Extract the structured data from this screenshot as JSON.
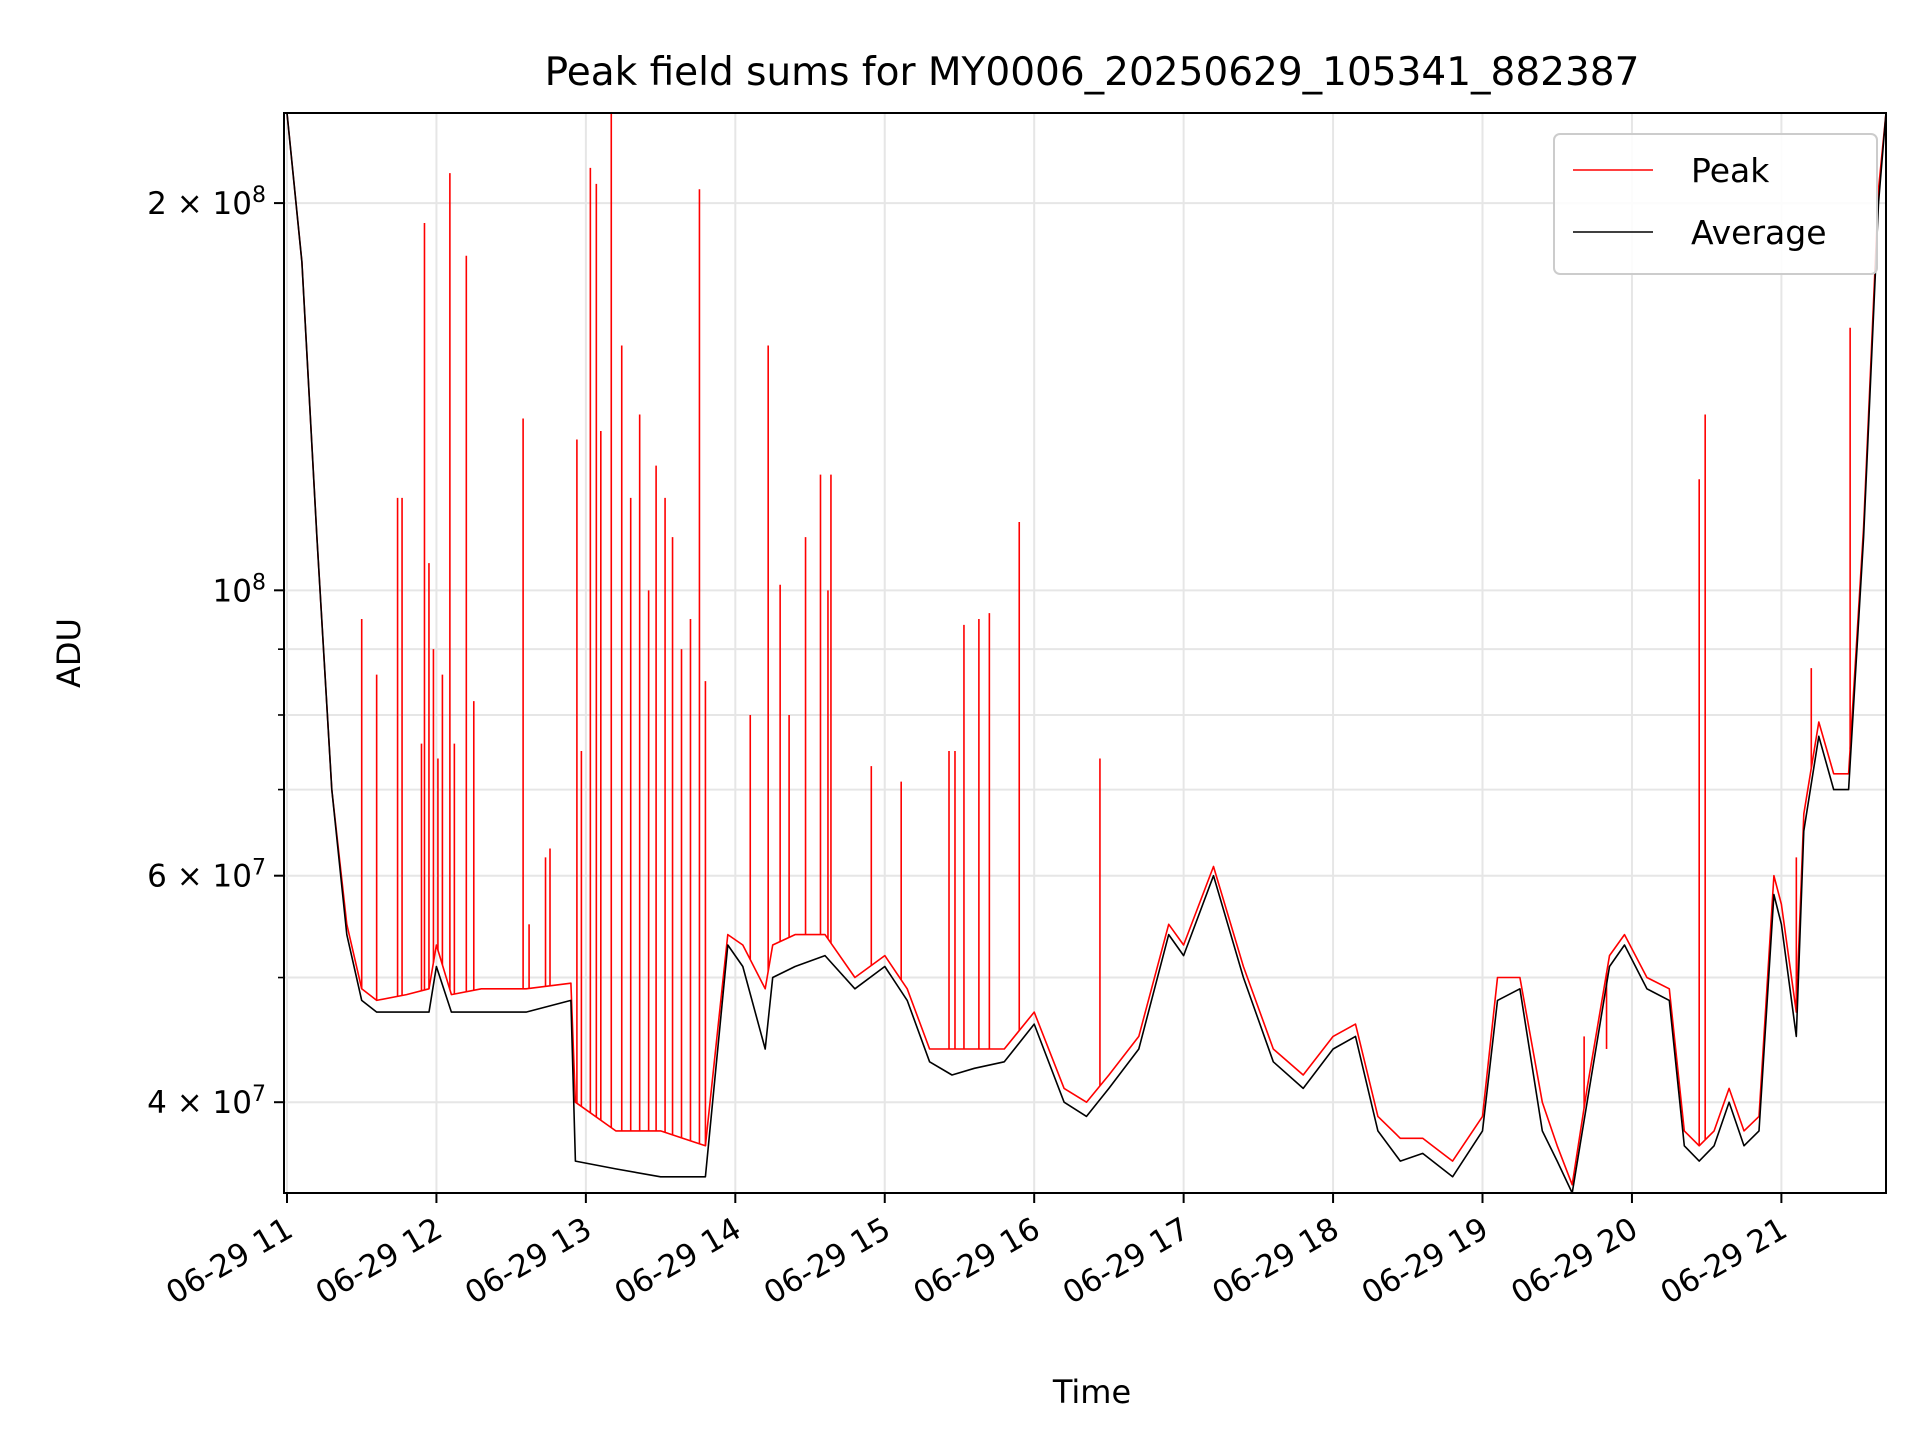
{
  "chart_data": {
    "type": "line",
    "title": "Peak field sums for MY0006_20250629_105341_882387",
    "xlabel": "Time",
    "ylabel": "ADU",
    "yscale": "log",
    "xlim": [
      10.98,
      21.7
    ],
    "ylim": [
      34000000,
      235000000
    ],
    "grid": true,
    "legend_position": "top-right",
    "x_ticks": [
      {
        "x": 11,
        "label": "06-29 11"
      },
      {
        "x": 12,
        "label": "06-29 12"
      },
      {
        "x": 13,
        "label": "06-29 13"
      },
      {
        "x": 14,
        "label": "06-29 14"
      },
      {
        "x": 15,
        "label": "06-29 15"
      },
      {
        "x": 16,
        "label": "06-29 16"
      },
      {
        "x": 17,
        "label": "06-29 17"
      },
      {
        "x": 18,
        "label": "06-29 18"
      },
      {
        "x": 19,
        "label": "06-29 19"
      },
      {
        "x": 20,
        "label": "06-29 20"
      },
      {
        "x": 21,
        "label": "06-29 21"
      }
    ],
    "y_ticks": [
      {
        "value": 40000000,
        "mantissa": "4",
        "exp": "7"
      },
      {
        "value": 60000000,
        "mantissa": "6",
        "exp": "7"
      },
      {
        "value": 100000000,
        "mantissa": "",
        "exp": "8"
      },
      {
        "value": 200000000,
        "mantissa": "2",
        "exp": "8"
      }
    ],
    "y_minor_ticks": [
      50000000,
      70000000,
      80000000,
      90000000
    ],
    "series": [
      {
        "name": "Average",
        "color": "#000000",
        "x": [
          11.0,
          11.1,
          11.2,
          11.3,
          11.4,
          11.5,
          11.6,
          11.8,
          11.95,
          12.0,
          12.1,
          12.3,
          12.6,
          12.9,
          12.93,
          13.2,
          13.5,
          13.8,
          13.95,
          14.05,
          14.2,
          14.25,
          14.4,
          14.6,
          14.8,
          15.0,
          15.15,
          15.3,
          15.45,
          15.6,
          15.8,
          16.0,
          16.2,
          16.35,
          16.5,
          16.7,
          16.9,
          17.0,
          17.2,
          17.4,
          17.6,
          17.8,
          18.0,
          18.15,
          18.3,
          18.45,
          18.6,
          18.8,
          19.0,
          19.1,
          19.25,
          19.4,
          19.5,
          19.6,
          19.7,
          19.85,
          19.95,
          20.1,
          20.25,
          20.35,
          20.45,
          20.55,
          20.65,
          20.75,
          20.85,
          20.95,
          21.0,
          21.1,
          21.15,
          21.25,
          21.35,
          21.45,
          21.55,
          21.65,
          21.7
        ],
        "values": [
          235000000,
          180000000,
          110000000,
          70000000,
          54000000,
          48000000,
          47000000,
          47000000,
          47000000,
          51000000,
          47000000,
          47000000,
          47000000,
          48000000,
          36000000,
          35500000,
          35000000,
          35000000,
          53000000,
          51000000,
          44000000,
          50000000,
          51000000,
          52000000,
          49000000,
          51000000,
          48000000,
          43000000,
          42000000,
          42500000,
          43000000,
          46000000,
          40000000,
          39000000,
          41000000,
          44000000,
          54000000,
          52000000,
          60000000,
          50000000,
          43000000,
          41000000,
          44000000,
          45000000,
          38000000,
          36000000,
          36500000,
          35000000,
          38000000,
          48000000,
          49000000,
          38000000,
          36000000,
          34000000,
          40000000,
          51000000,
          53000000,
          49000000,
          48000000,
          37000000,
          36000000,
          37000000,
          40000000,
          37000000,
          38000000,
          58000000,
          55000000,
          45000000,
          65000000,
          77000000,
          70000000,
          70000000,
          110000000,
          200000000,
          235000000
        ]
      },
      {
        "name": "Peak",
        "color": "#ff0000",
        "x": [
          11.0,
          11.1,
          11.2,
          11.3,
          11.4,
          11.5,
          11.6,
          11.8,
          11.95,
          12.0,
          12.1,
          12.3,
          12.6,
          12.9,
          12.93,
          13.2,
          13.5,
          13.8,
          13.95,
          14.05,
          14.2,
          14.25,
          14.4,
          14.6,
          14.8,
          15.0,
          15.15,
          15.3,
          15.45,
          15.6,
          15.8,
          16.0,
          16.2,
          16.35,
          16.5,
          16.7,
          16.9,
          17.0,
          17.2,
          17.4,
          17.6,
          17.8,
          18.0,
          18.15,
          18.3,
          18.45,
          18.6,
          18.8,
          19.0,
          19.1,
          19.25,
          19.4,
          19.5,
          19.6,
          19.7,
          19.85,
          19.95,
          20.1,
          20.25,
          20.35,
          20.45,
          20.55,
          20.65,
          20.75,
          20.85,
          20.95,
          21.0,
          21.1,
          21.15,
          21.25,
          21.35,
          21.45,
          21.55,
          21.65,
          21.7
        ],
        "values": [
          235000000,
          180000000,
          110000000,
          70000000,
          55000000,
          49000000,
          48000000,
          48500000,
          49000000,
          53000000,
          48500000,
          49000000,
          49000000,
          49500000,
          40000000,
          38000000,
          38000000,
          37000000,
          54000000,
          53000000,
          49000000,
          53000000,
          54000000,
          54000000,
          50000000,
          52000000,
          49000000,
          44000000,
          44000000,
          44000000,
          44000000,
          47000000,
          41000000,
          40000000,
          42000000,
          45000000,
          55000000,
          53000000,
          61000000,
          51000000,
          44000000,
          42000000,
          45000000,
          46000000,
          39000000,
          37500000,
          37500000,
          36000000,
          39000000,
          50000000,
          50000000,
          40000000,
          37000000,
          34500000,
          41000000,
          52000000,
          54000000,
          50000000,
          49000000,
          38000000,
          37000000,
          38000000,
          41000000,
          38000000,
          39000000,
          60000000,
          57000000,
          47000000,
          67000000,
          79000000,
          72000000,
          72000000,
          112000000,
          205000000,
          235000000
        ],
        "spikes": [
          {
            "x": 11.5,
            "v": 95000000
          },
          {
            "x": 11.6,
            "v": 86000000
          },
          {
            "x": 11.74,
            "v": 118000000
          },
          {
            "x": 11.77,
            "v": 118000000
          },
          {
            "x": 11.9,
            "v": 76000000
          },
          {
            "x": 11.92,
            "v": 193000000
          },
          {
            "x": 11.95,
            "v": 105000000
          },
          {
            "x": 11.98,
            "v": 90000000
          },
          {
            "x": 12.01,
            "v": 74000000
          },
          {
            "x": 12.04,
            "v": 86000000
          },
          {
            "x": 12.09,
            "v": 211000000
          },
          {
            "x": 12.12,
            "v": 76000000
          },
          {
            "x": 12.2,
            "v": 182000000
          },
          {
            "x": 12.25,
            "v": 82000000
          },
          {
            "x": 12.58,
            "v": 136000000
          },
          {
            "x": 12.62,
            "v": 55000000
          },
          {
            "x": 12.73,
            "v": 62000000
          },
          {
            "x": 12.76,
            "v": 63000000
          },
          {
            "x": 12.94,
            "v": 131000000
          },
          {
            "x": 12.97,
            "v": 75000000
          },
          {
            "x": 13.03,
            "v": 213000000
          },
          {
            "x": 13.07,
            "v": 207000000
          },
          {
            "x": 13.1,
            "v": 133000000
          },
          {
            "x": 13.17,
            "v": 235000000
          },
          {
            "x": 13.24,
            "v": 155000000
          },
          {
            "x": 13.3,
            "v": 118000000
          },
          {
            "x": 13.36,
            "v": 137000000
          },
          {
            "x": 13.42,
            "v": 100000000
          },
          {
            "x": 13.47,
            "v": 125000000
          },
          {
            "x": 13.53,
            "v": 118000000
          },
          {
            "x": 13.58,
            "v": 110000000
          },
          {
            "x": 13.64,
            "v": 90000000
          },
          {
            "x": 13.7,
            "v": 95000000
          },
          {
            "x": 13.76,
            "v": 205000000
          },
          {
            "x": 13.8,
            "v": 85000000
          },
          {
            "x": 14.1,
            "v": 80000000
          },
          {
            "x": 14.22,
            "v": 155000000
          },
          {
            "x": 14.3,
            "v": 101000000
          },
          {
            "x": 14.36,
            "v": 80000000
          },
          {
            "x": 14.47,
            "v": 110000000
          },
          {
            "x": 14.57,
            "v": 123000000
          },
          {
            "x": 14.62,
            "v": 100000000
          },
          {
            "x": 14.64,
            "v": 123000000
          },
          {
            "x": 14.91,
            "v": 73000000
          },
          {
            "x": 15.11,
            "v": 71000000
          },
          {
            "x": 15.43,
            "v": 75000000
          },
          {
            "x": 15.47,
            "v": 75000000
          },
          {
            "x": 15.53,
            "v": 94000000
          },
          {
            "x": 15.63,
            "v": 95000000
          },
          {
            "x": 15.7,
            "v": 96000000
          },
          {
            "x": 15.9,
            "v": 113000000
          },
          {
            "x": 16.44,
            "v": 74000000
          },
          {
            "x": 19.68,
            "v": 45000000
          },
          {
            "x": 19.83,
            "v": 44000000
          },
          {
            "x": 20.45,
            "v": 122000000
          },
          {
            "x": 20.49,
            "v": 137000000
          },
          {
            "x": 21.1,
            "v": 62000000
          },
          {
            "x": 21.2,
            "v": 87000000
          },
          {
            "x": 21.46,
            "v": 160000000
          }
        ]
      }
    ]
  }
}
